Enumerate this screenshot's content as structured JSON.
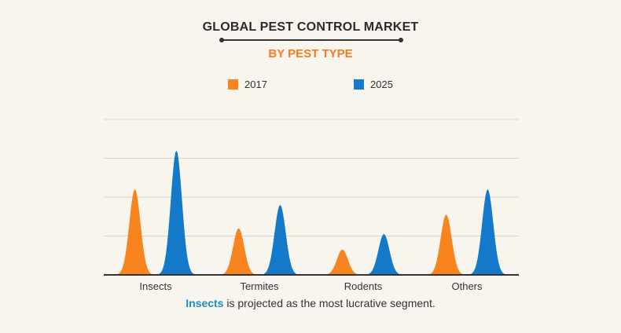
{
  "colors": {
    "title": "#2b2b2b",
    "subtitle": "#f47b20",
    "series_2017": "#f7841f",
    "series_2025": "#1479c9",
    "highlight": "#1a8fc4",
    "grid": "#d9d6d0",
    "axis": "#333333"
  },
  "chart_data": {
    "type": "area",
    "title": "GLOBAL PEST CONTROL MARKET",
    "subtitle": "BY PEST TYPE",
    "categories": [
      "Insects",
      "Termites",
      "Rodents",
      "Others"
    ],
    "series": [
      {
        "name": "2017",
        "values": [
          2.2,
          1.2,
          0.65,
          1.55
        ]
      },
      {
        "name": "2025",
        "values": [
          3.2,
          1.8,
          1.05,
          2.2
        ]
      }
    ],
    "ylim": [
      0,
      4
    ],
    "grid": true,
    "legend_position": "top-center",
    "xlabel": "",
    "ylabel": ""
  },
  "footnote": {
    "highlight": "Insects",
    "rest": " is projected as the most lucrative segment."
  }
}
